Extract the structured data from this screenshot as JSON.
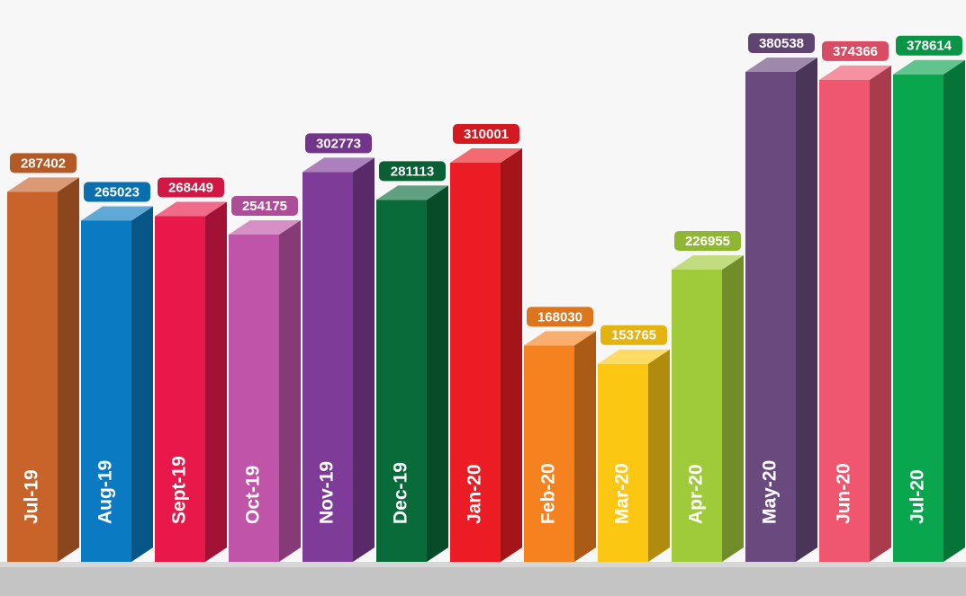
{
  "chart_data": {
    "type": "bar3d",
    "categories": [
      "Jul-19",
      "Aug-19",
      "Sept-19",
      "Oct-19",
      "Nov-19",
      "Dec-19",
      "Jan-20",
      "Feb-20",
      "Mar-20",
      "Apr-20",
      "May-20",
      "Jun-20",
      "Jul-20"
    ],
    "values": [
      287402,
      265023,
      268449,
      254175,
      302773,
      281113,
      310001,
      168030,
      153765,
      226955,
      380538,
      374366,
      378614
    ],
    "colors": [
      "#c8642a",
      "#0a7bc2",
      "#e8194a",
      "#c054a8",
      "#7f3b98",
      "#0a6b3a",
      "#ec1c24",
      "#f5821f",
      "#fcc712",
      "#9fcb3a",
      "#6a4a7e",
      "#f0566e",
      "#0aa64e"
    ]
  }
}
